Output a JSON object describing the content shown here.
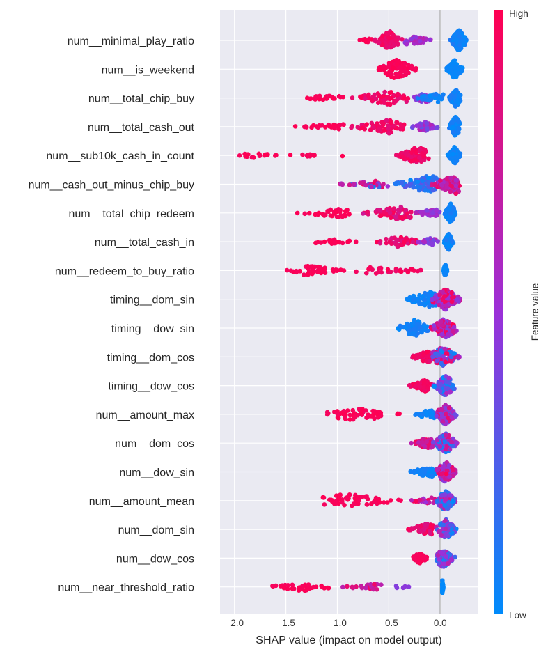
{
  "chart_data": {
    "type": "scatter",
    "subtype": "shap-beeswarm",
    "title": "",
    "xlabel": "SHAP value (impact on model output)",
    "xlim": [
      -2.14,
      0.37
    ],
    "xticks": [
      -2.0,
      -1.5,
      -1.0,
      -0.5,
      0.0
    ],
    "xtick_labels": [
      "−2.0",
      "−1.5",
      "−1.0",
      "−0.5",
      "0.0"
    ],
    "grid": true,
    "colorbar": {
      "label": "Feature value",
      "high": "High",
      "low": "Low",
      "colors": [
        "#008bfb",
        "#9b30d8",
        "#ff0052"
      ]
    },
    "features": [
      {
        "name": "num__minimal_play_ratio",
        "clusters": [
          {
            "from": -0.8,
            "to": -0.65,
            "peak": -0.7,
            "n": 12,
            "fv": [
              0.95,
              1
            ]
          },
          {
            "from": -0.65,
            "to": -0.35,
            "peak": -0.5,
            "n": 90,
            "fv": [
              0.85,
              1
            ]
          },
          {
            "from": -0.35,
            "to": -0.05,
            "peak": -0.3,
            "n": 40,
            "fv": [
              0.4,
              0.7
            ]
          },
          {
            "from": 0.08,
            "to": 0.26,
            "peak": 0.18,
            "n": 110,
            "fv": [
              0,
              0.1
            ]
          }
        ]
      },
      {
        "name": "num__is_weekend",
        "clusters": [
          {
            "from": -0.62,
            "to": -0.2,
            "peak": -0.43,
            "n": 90,
            "fv": [
              0.95,
              1
            ]
          },
          {
            "from": 0.05,
            "to": 0.22,
            "peak": 0.14,
            "n": 90,
            "fv": [
              0,
              0.05
            ]
          }
        ]
      },
      {
        "name": "num__total_chip_buy",
        "clusters": [
          {
            "from": -1.45,
            "to": -0.9,
            "peak": -1.0,
            "n": 25,
            "fv": [
              0.95,
              1
            ]
          },
          {
            "from": -0.9,
            "to": -0.3,
            "peak": -0.5,
            "n": 60,
            "fv": [
              0.85,
              1
            ]
          },
          {
            "from": -0.3,
            "to": -0.05,
            "peak": -0.15,
            "n": 40,
            "fv": [
              0.3,
              0.6
            ]
          },
          {
            "from": -0.25,
            "to": 0.05,
            "peak": 0.0,
            "n": 40,
            "fv": [
              0,
              0.1
            ]
          },
          {
            "from": 0.08,
            "to": 0.2,
            "peak": 0.15,
            "n": 90,
            "fv": [
              0,
              0.1
            ]
          }
        ]
      },
      {
        "name": "num__total_cash_out",
        "clusters": [
          {
            "from": -1.45,
            "to": -0.9,
            "peak": -1.0,
            "n": 22,
            "fv": [
              0.95,
              1
            ]
          },
          {
            "from": -0.9,
            "to": -0.3,
            "peak": -0.5,
            "n": 60,
            "fv": [
              0.85,
              1
            ]
          },
          {
            "from": -0.3,
            "to": -0.02,
            "peak": -0.15,
            "n": 45,
            "fv": [
              0.3,
              0.65
            ]
          },
          {
            "from": 0.08,
            "to": 0.2,
            "peak": 0.15,
            "n": 95,
            "fv": [
              0,
              0.1
            ]
          }
        ]
      },
      {
        "name": "num__sub10k_cash_in_count",
        "clusters": [
          {
            "from": -2.02,
            "to": -1.55,
            "peak": -1.8,
            "n": 18,
            "fv": [
              0.95,
              1
            ]
          },
          {
            "from": -1.55,
            "to": -1.1,
            "peak": -1.3,
            "n": 12,
            "fv": [
              0.95,
              1
            ]
          },
          {
            "from": -0.95,
            "to": -0.95,
            "peak": -0.95,
            "n": 1,
            "fv": [
              1,
              1
            ]
          },
          {
            "from": -0.45,
            "to": -0.1,
            "peak": -0.22,
            "n": 80,
            "fv": [
              0.85,
              1
            ]
          },
          {
            "from": 0.07,
            "to": 0.2,
            "peak": 0.14,
            "n": 80,
            "fv": [
              0,
              0.08
            ]
          }
        ]
      },
      {
        "name": "num__cash_out_minus_chip_buy",
        "clusters": [
          {
            "from": -1.0,
            "to": -0.5,
            "peak": -0.6,
            "n": 30,
            "fv": [
              0,
              1
            ]
          },
          {
            "from": -0.5,
            "to": 0.0,
            "peak": -0.1,
            "n": 80,
            "fv": [
              0,
              0.3
            ]
          },
          {
            "from": -0.1,
            "to": 0.2,
            "peak": 0.15,
            "n": 90,
            "fv": [
              0.55,
              0.95
            ]
          }
        ]
      },
      {
        "name": "num__total_chip_redeem",
        "clusters": [
          {
            "from": -1.45,
            "to": -0.8,
            "peak": -1.0,
            "n": 35,
            "fv": [
              0.95,
              1
            ]
          },
          {
            "from": -0.8,
            "to": -0.2,
            "peak": -0.4,
            "n": 60,
            "fv": [
              0.75,
              1
            ]
          },
          {
            "from": -0.25,
            "to": 0.0,
            "peak": -0.05,
            "n": 35,
            "fv": [
              0.35,
              0.65
            ]
          },
          {
            "from": 0.03,
            "to": 0.15,
            "peak": 0.1,
            "n": 90,
            "fv": [
              0,
              0.1
            ]
          }
        ]
      },
      {
        "name": "num__total_cash_in",
        "clusters": [
          {
            "from": -1.3,
            "to": -0.75,
            "peak": -1.1,
            "n": 25,
            "fv": [
              0.95,
              1
            ]
          },
          {
            "from": -0.7,
            "to": -0.2,
            "peak": -0.4,
            "n": 45,
            "fv": [
              0.8,
              1
            ]
          },
          {
            "from": -0.25,
            "to": 0.0,
            "peak": -0.1,
            "n": 30,
            "fv": [
              0.35,
              0.65
            ]
          },
          {
            "from": 0.03,
            "to": 0.13,
            "peak": 0.08,
            "n": 80,
            "fv": [
              0,
              0.1
            ]
          }
        ]
      },
      {
        "name": "num__redeem_to_buy_ratio",
        "clusters": [
          {
            "from": -1.55,
            "to": -0.9,
            "peak": -1.3,
            "n": 45,
            "fv": [
              0.95,
              1
            ]
          },
          {
            "from": -0.9,
            "to": -0.05,
            "peak": -0.6,
            "n": 30,
            "fv": [
              0.9,
              1
            ]
          },
          {
            "from": 0.03,
            "to": 0.07,
            "peak": 0.05,
            "n": 60,
            "fv": [
              0,
              0.05
            ]
          }
        ]
      },
      {
        "name": "timing__dom_sin",
        "clusters": [
          {
            "from": -0.38,
            "to": 0.0,
            "peak": -0.1,
            "n": 70,
            "fv": [
              0,
              0.1
            ]
          },
          {
            "from": -0.1,
            "to": 0.22,
            "peak": 0.05,
            "n": 110,
            "fv": [
              0.4,
              1
            ]
          }
        ]
      },
      {
        "name": "timing__dow_sin",
        "clusters": [
          {
            "from": -0.42,
            "to": -0.05,
            "peak": -0.25,
            "n": 75,
            "fv": [
              0,
              0.1
            ]
          },
          {
            "from": -0.1,
            "to": 0.18,
            "peak": 0.05,
            "n": 110,
            "fv": [
              0.4,
              1
            ]
          }
        ]
      },
      {
        "name": "timing__dom_cos",
        "clusters": [
          {
            "from": -0.3,
            "to": -0.05,
            "peak": -0.12,
            "n": 55,
            "fv": [
              0.85,
              1
            ]
          },
          {
            "from": -0.1,
            "to": 0.2,
            "peak": 0.02,
            "n": 110,
            "fv": [
              0,
              1
            ]
          }
        ]
      },
      {
        "name": "timing__dow_cos",
        "clusters": [
          {
            "from": -0.3,
            "to": -0.08,
            "peak": -0.15,
            "n": 50,
            "fv": [
              0.9,
              1
            ]
          },
          {
            "from": -0.08,
            "to": 0.15,
            "peak": 0.05,
            "n": 110,
            "fv": [
              0,
              0.6
            ]
          }
        ]
      },
      {
        "name": "num__amount_max",
        "clusters": [
          {
            "from": -1.2,
            "to": -0.35,
            "peak": -0.8,
            "n": 60,
            "fv": [
              0.95,
              1
            ]
          },
          {
            "from": -0.28,
            "to": -0.03,
            "peak": -0.1,
            "n": 40,
            "fv": [
              0,
              0.1
            ]
          },
          {
            "from": -0.05,
            "to": 0.17,
            "peak": 0.05,
            "n": 110,
            "fv": [
              0.3,
              0.9
            ]
          }
        ]
      },
      {
        "name": "num__dom_cos",
        "clusters": [
          {
            "from": -0.3,
            "to": -0.05,
            "peak": -0.12,
            "n": 45,
            "fv": [
              0.6,
              1
            ]
          },
          {
            "from": -0.08,
            "to": 0.18,
            "peak": 0.05,
            "n": 100,
            "fv": [
              0,
              0.9
            ]
          }
        ]
      },
      {
        "name": "num__dow_sin",
        "clusters": [
          {
            "from": -0.3,
            "to": -0.03,
            "peak": -0.1,
            "n": 50,
            "fv": [
              0,
              0.1
            ]
          },
          {
            "from": -0.05,
            "to": 0.17,
            "peak": 0.05,
            "n": 110,
            "fv": [
              0.4,
              1
            ]
          }
        ]
      },
      {
        "name": "num__amount_mean",
        "clusters": [
          {
            "from": -1.18,
            "to": -0.3,
            "peak": -0.9,
            "n": 60,
            "fv": [
              0.95,
              1
            ]
          },
          {
            "from": -0.3,
            "to": -0.05,
            "peak": -0.1,
            "n": 25,
            "fv": [
              0.5,
              1
            ]
          },
          {
            "from": -0.05,
            "to": 0.16,
            "peak": 0.05,
            "n": 110,
            "fv": [
              0,
              0.8
            ]
          }
        ]
      },
      {
        "name": "num__dom_sin",
        "clusters": [
          {
            "from": -0.32,
            "to": -0.05,
            "peak": -0.12,
            "n": 55,
            "fv": [
              0.8,
              1
            ]
          },
          {
            "from": -0.05,
            "to": 0.17,
            "peak": 0.05,
            "n": 110,
            "fv": [
              0,
              0.7
            ]
          }
        ]
      },
      {
        "name": "num__dow_cos",
        "clusters": [
          {
            "from": -0.3,
            "to": -0.12,
            "peak": -0.2,
            "n": 45,
            "fv": [
              0.95,
              1
            ]
          },
          {
            "from": -0.05,
            "to": 0.15,
            "peak": 0.03,
            "n": 90,
            "fv": [
              0,
              0.7
            ]
          }
        ]
      },
      {
        "name": "num__near_threshold_ratio",
        "clusters": [
          {
            "from": -1.72,
            "to": -1.0,
            "peak": -1.35,
            "n": 35,
            "fv": [
              0.95,
              1
            ]
          },
          {
            "from": -1.0,
            "to": -0.55,
            "peak": -0.65,
            "n": 25,
            "fv": [
              0.6,
              0.95
            ]
          },
          {
            "from": -0.45,
            "to": -0.27,
            "peak": -0.4,
            "n": 5,
            "fv": [
              0.35,
              0.5
            ]
          },
          {
            "from": 0.02,
            "to": 0.03,
            "peak": 0.02,
            "n": 60,
            "fv": [
              0,
              0.03
            ]
          }
        ]
      }
    ]
  }
}
